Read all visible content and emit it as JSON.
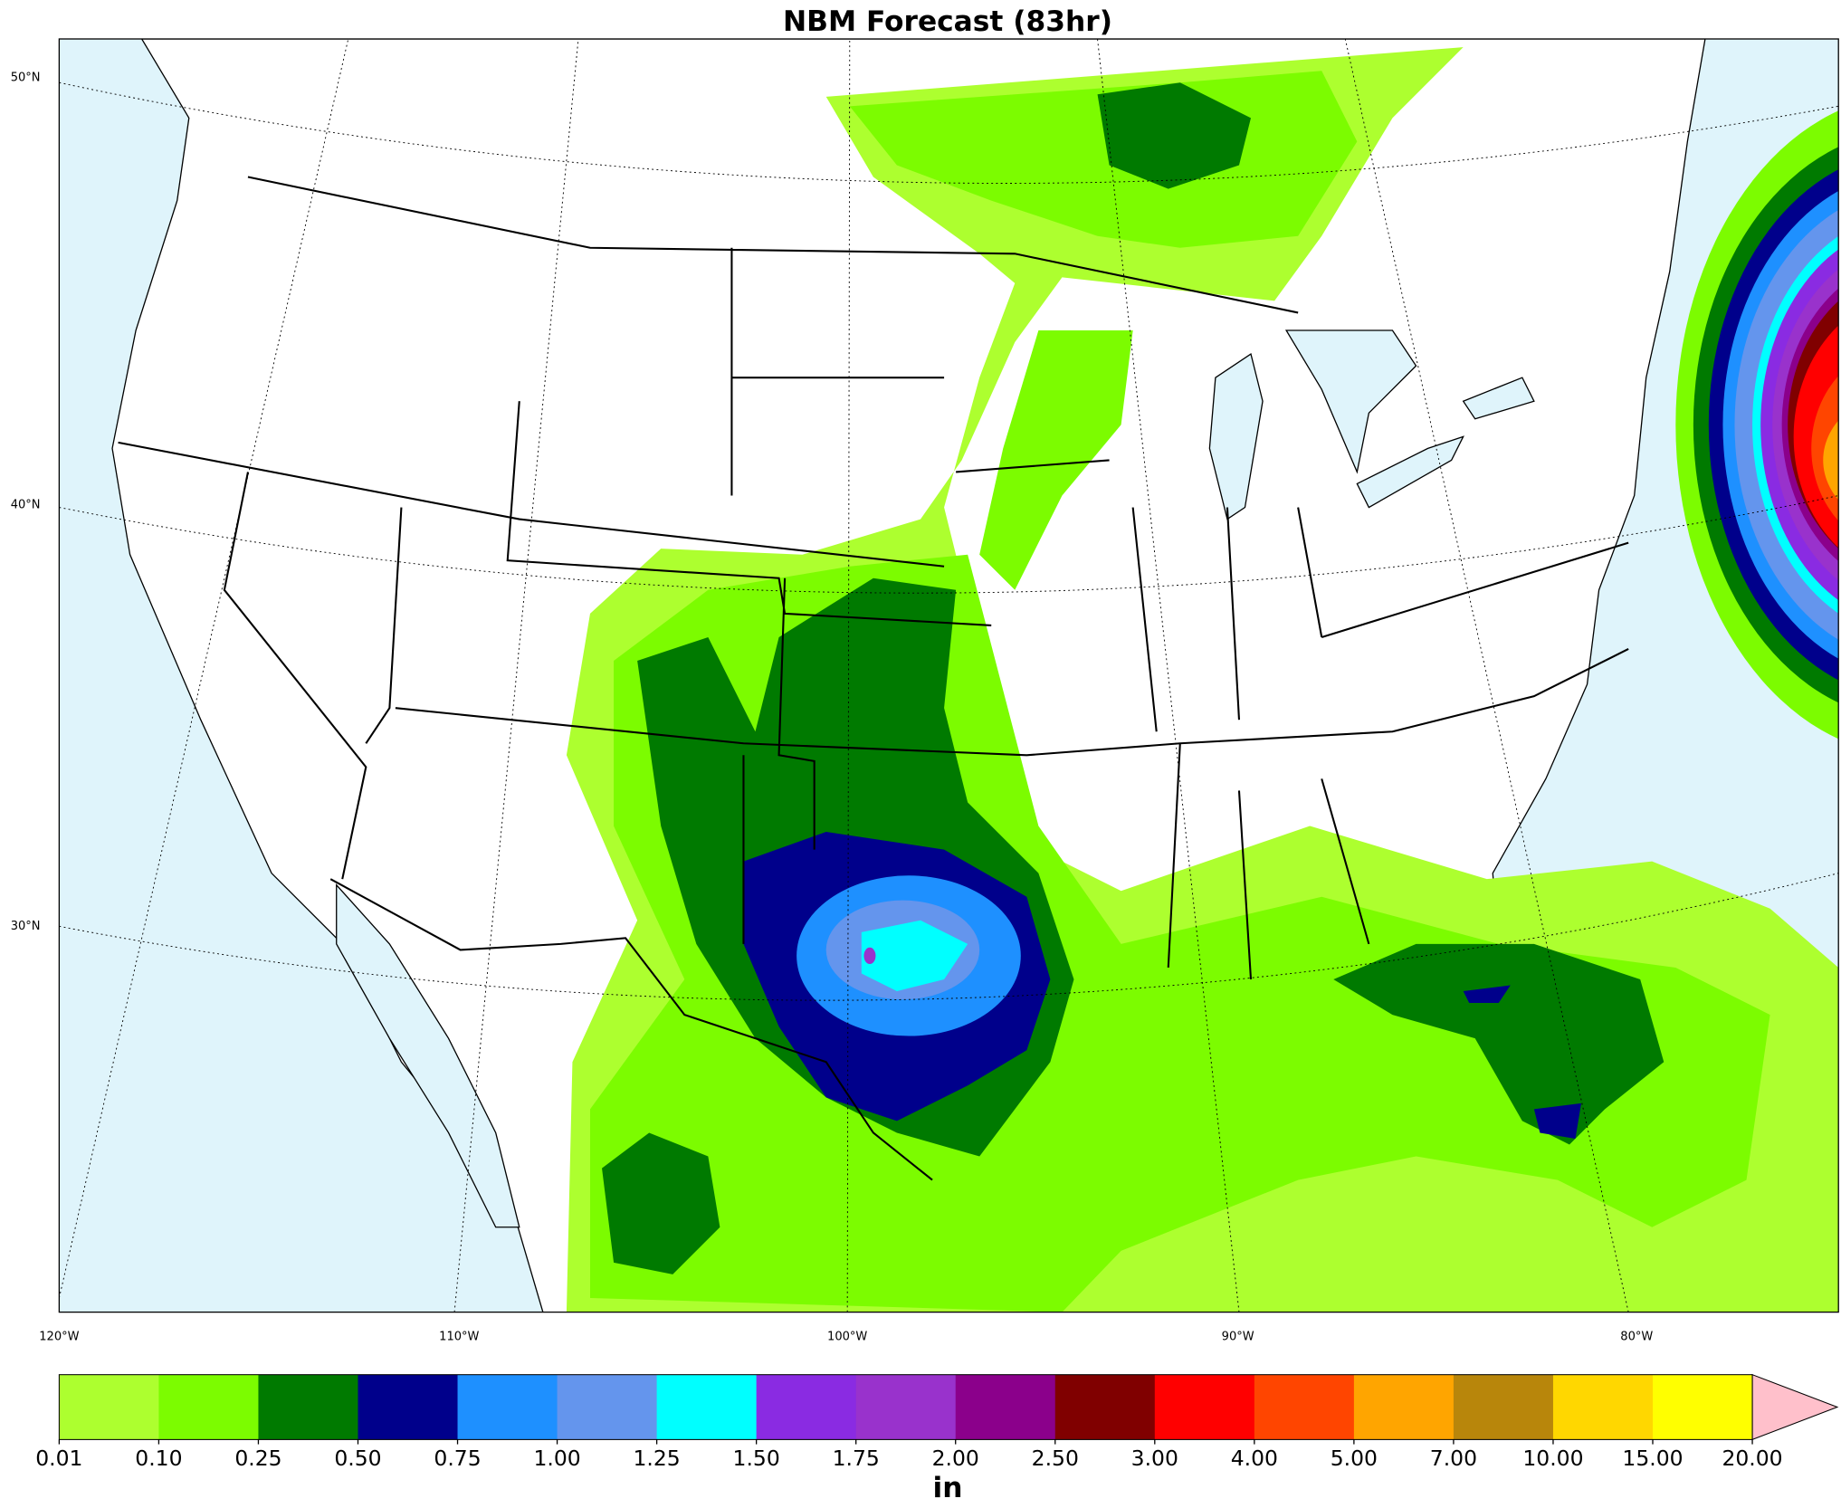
{
  "title": "NBM Forecast (83hr)",
  "map": {
    "lat_labels": [
      "50°N",
      "40°N",
      "30°N"
    ],
    "lon_labels": [
      "120°W",
      "110°W",
      "100°W",
      "90°W",
      "80°W"
    ]
  },
  "colorbar": {
    "ticks": [
      "0.01",
      "0.10",
      "0.25",
      "0.50",
      "0.75",
      "1.00",
      "1.25",
      "1.50",
      "1.75",
      "2.00",
      "2.50",
      "3.00",
      "4.00",
      "5.00",
      "7.00",
      "10.00",
      "15.00",
      "20.00"
    ],
    "colors": [
      "#adff2f",
      "#7cfc00",
      "#007a00",
      "#00008b",
      "#1e90ff",
      "#6495ed",
      "#00ffff",
      "#8a2be2",
      "#9932cc",
      "#8b008b",
      "#800000",
      "#ff0000",
      "#ff4500",
      "#ffa500",
      "#b8860b",
      "#ffd700",
      "#ffff00"
    ],
    "extend_color": "#ffc0cb",
    "unit": "in"
  }
}
